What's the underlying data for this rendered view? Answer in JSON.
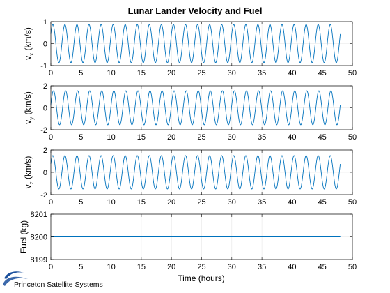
{
  "title": "Lunar Lander Velocity and Fuel",
  "xlabel": "Time (hours)",
  "colors": {
    "series": "#0072BD",
    "grid": "#e6e6e6",
    "axis": "#000000",
    "logo": "#1a4f9c"
  },
  "logo": {
    "text": "Princeton Satellite Systems",
    "icon": "swoosh-logo-icon"
  },
  "chart_data": [
    {
      "type": "line",
      "ylabel_main": "v",
      "ylabel_sub": "x",
      "ylabel_unit": "(km/s)",
      "xlim": [
        0,
        50
      ],
      "ylim": [
        -1,
        1
      ],
      "xticks": [
        0,
        5,
        10,
        15,
        20,
        25,
        30,
        35,
        40,
        45,
        50
      ],
      "yticks": [
        -1,
        0,
        1
      ],
      "grid": true,
      "series": [
        {
          "amplitude": 0.87,
          "period_hours": 2.0,
          "phase_deg": 30,
          "t_end": 48
        }
      ]
    },
    {
      "type": "line",
      "ylabel_main": "v",
      "ylabel_sub": "y",
      "ylabel_unit": "(km/s)",
      "xlim": [
        0,
        50
      ],
      "ylim": [
        -2,
        2
      ],
      "xticks": [
        0,
        5,
        10,
        15,
        20,
        25,
        30,
        35,
        40,
        45,
        50
      ],
      "yticks": [
        -2,
        0,
        2
      ],
      "grid": true,
      "series": [
        {
          "amplitude": 1.55,
          "period_hours": 2.0,
          "phase_deg": 10,
          "t_end": 48
        }
      ]
    },
    {
      "type": "line",
      "ylabel_main": "v",
      "ylabel_sub": "z",
      "ylabel_unit": "(km/s)",
      "xlim": [
        0,
        50
      ],
      "ylim": [
        -2,
        2
      ],
      "xticks": [
        0,
        5,
        10,
        15,
        20,
        25,
        30,
        35,
        40,
        45,
        50
      ],
      "yticks": [
        -2,
        0,
        2
      ],
      "grid": true,
      "series": [
        {
          "amplitude": 1.5,
          "period_hours": 2.0,
          "phase_deg": 30,
          "t_end": 48
        }
      ]
    },
    {
      "type": "line",
      "ylabel_main": "Fuel (kg)",
      "ylabel_sub": "",
      "ylabel_unit": "",
      "xlim": [
        0,
        50
      ],
      "ylim": [
        8199,
        8201
      ],
      "xticks": [
        0,
        5,
        10,
        15,
        20,
        25,
        30,
        35,
        40,
        45,
        50
      ],
      "yticks": [
        8199,
        8200,
        8201
      ],
      "grid": true,
      "series": [
        {
          "constant": 8200,
          "t_end": 48
        }
      ]
    }
  ]
}
